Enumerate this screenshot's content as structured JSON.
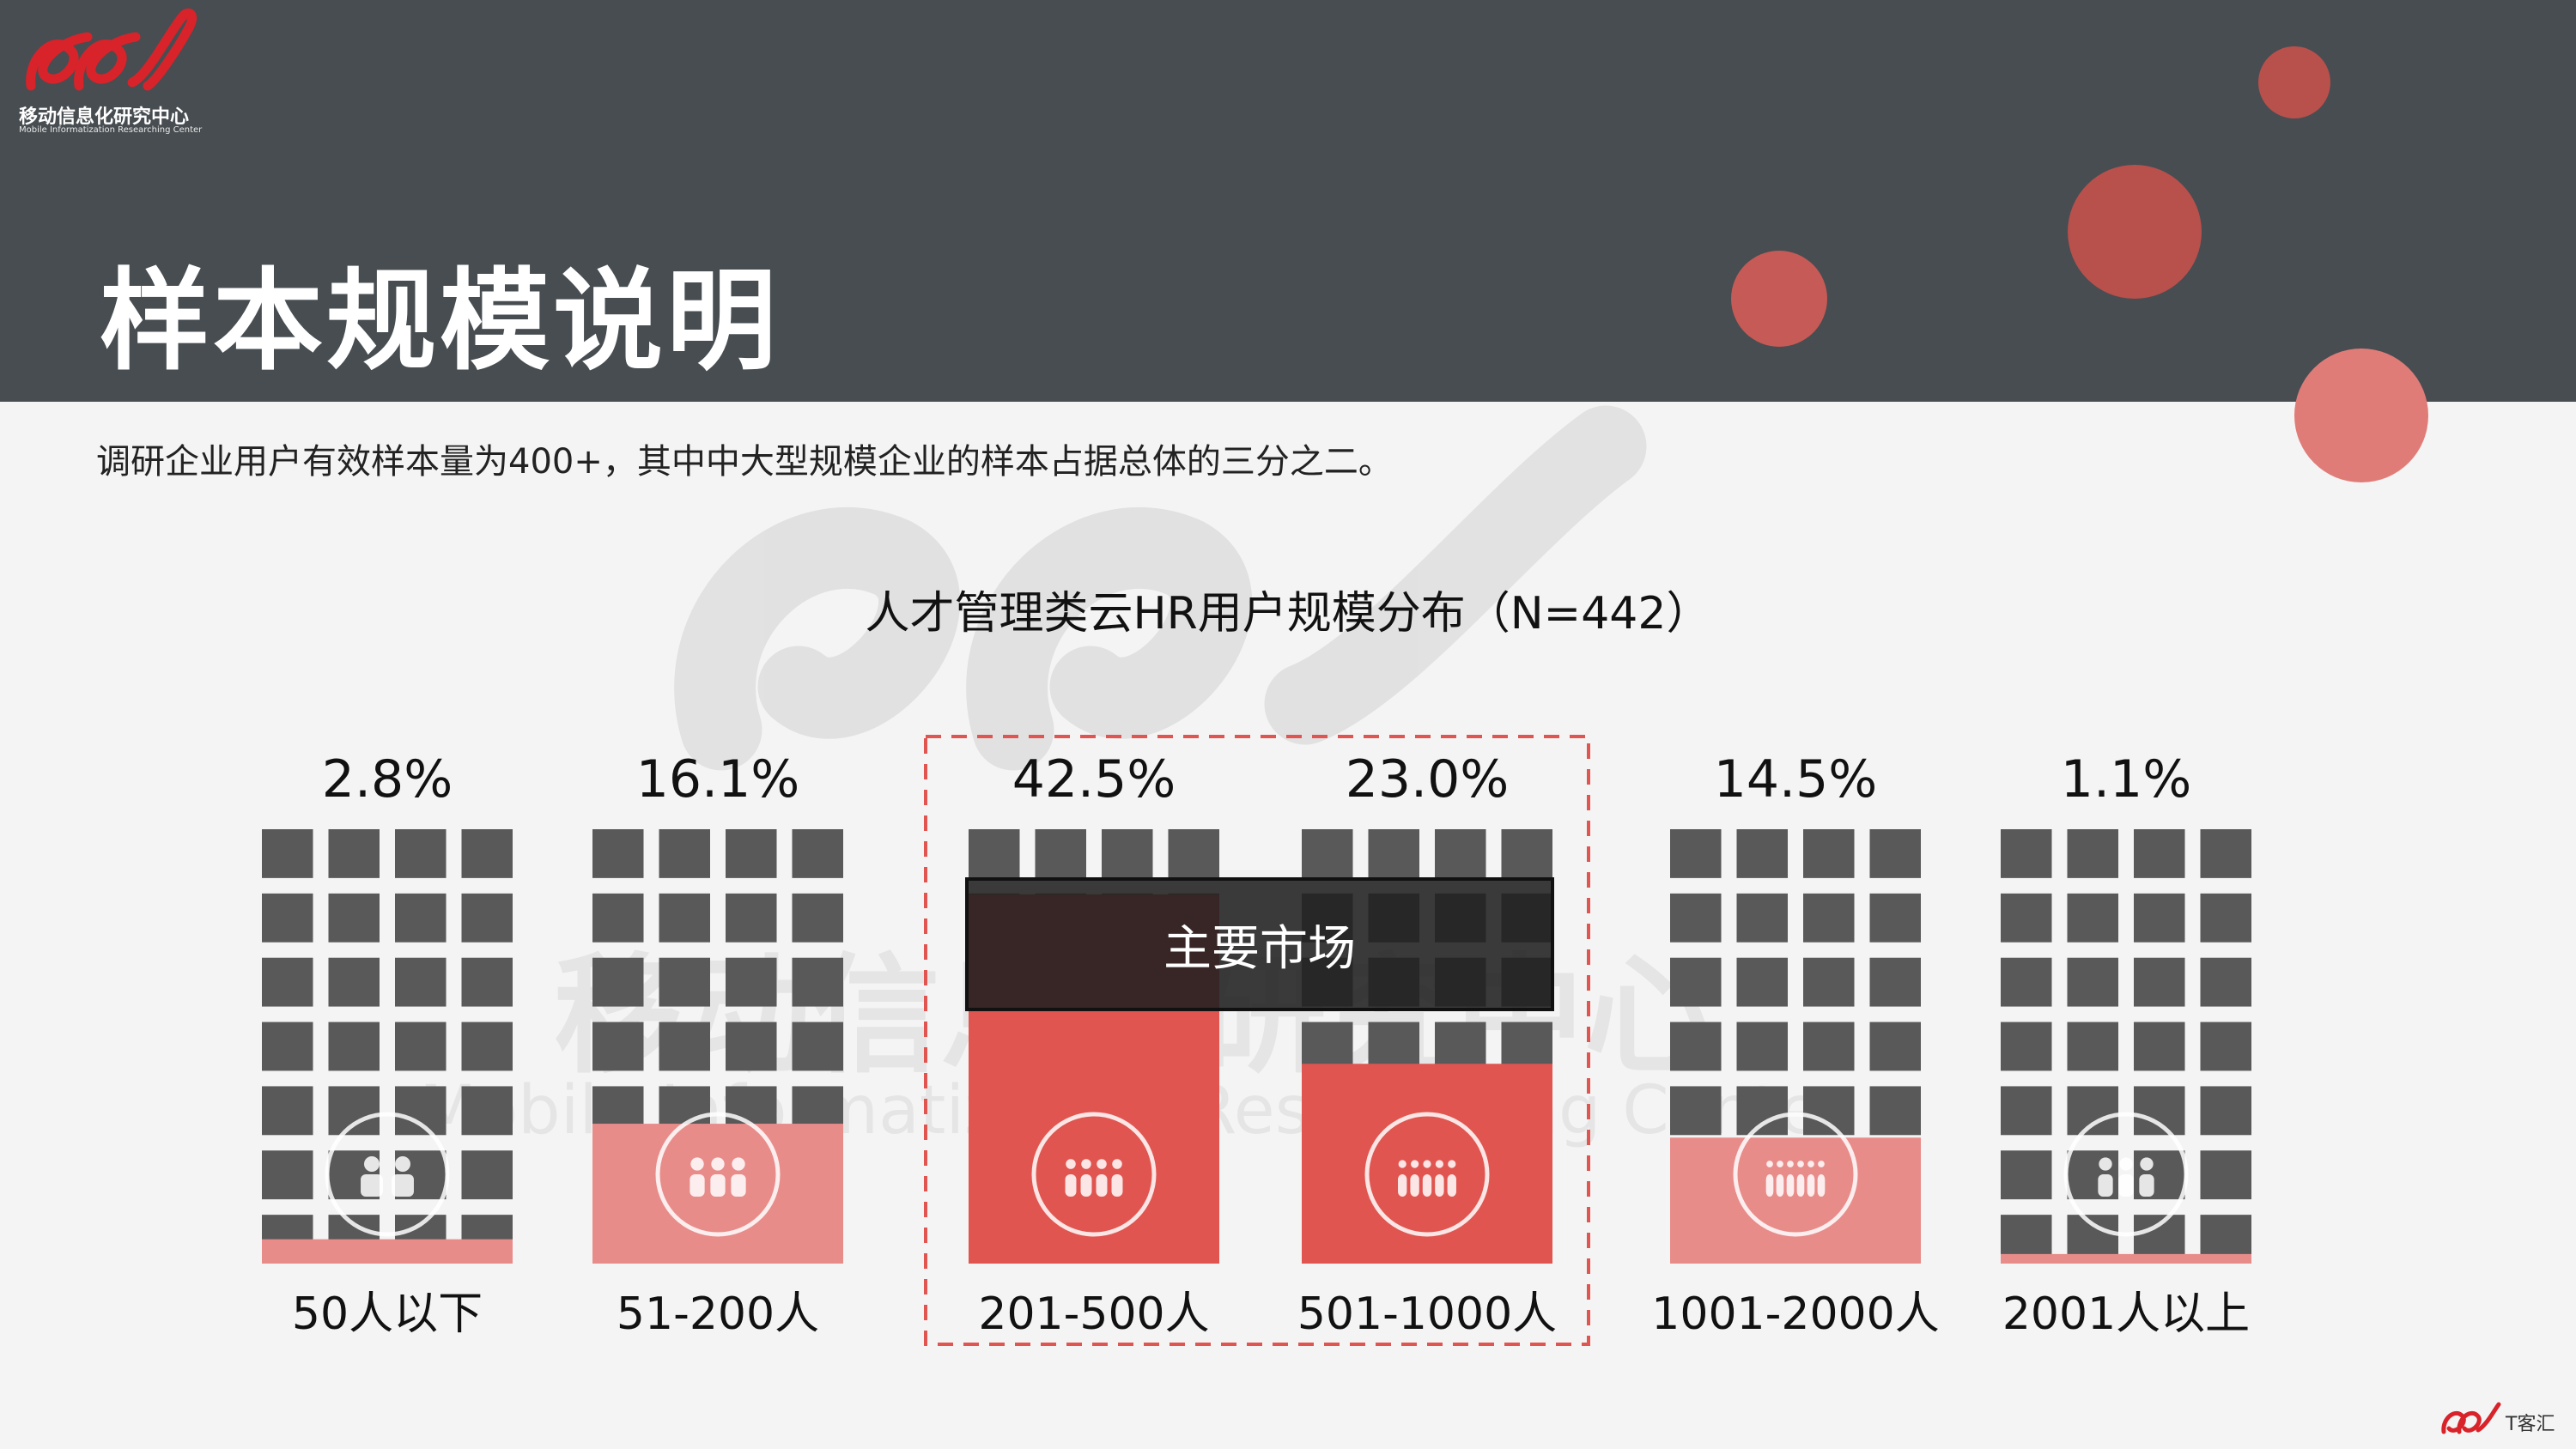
{
  "header": {
    "logo_text": "移动信息化研究中心",
    "logo_subtext": "Mobile Informatization Researching Center",
    "title": "样本规模说明"
  },
  "subtitle": "调研企业用户有效样本量为400+，其中中大型规模企业的样本占据总体的三分之二。",
  "watermark": {
    "cn": "移动信息化研究中心",
    "en": "Mobile Informatization Researching Center"
  },
  "highlight_label": "主要市场",
  "footer_brand": "T客汇",
  "colors": {
    "header_bg": "#474d51",
    "grid_gray": "#595959",
    "fill_main": "#e05550",
    "fill_light": "#e88c8a",
    "dashed_border": "#e05550",
    "circle_dark": "#b8504c",
    "circle_mid": "#c55a56",
    "circle_light": "#e07c78"
  },
  "chart_data": {
    "type": "bar",
    "title": "人才管理类云HR用户规模分布（N=442）",
    "categories": [
      "50人以下",
      "51-200人",
      "201-500人",
      "501-1000人",
      "1001-2000人",
      "2001人以上"
    ],
    "values": [
      2.8,
      16.1,
      42.5,
      23.0,
      14.5,
      1.1
    ],
    "value_labels": [
      "2.8%",
      "16.1%",
      "42.5%",
      "23.0%",
      "14.5%",
      "1.1%"
    ],
    "unit": "%",
    "highlighted_categories": [
      "201-500人",
      "501-1000人"
    ],
    "icons": [
      "businessmen-icon",
      "group-icon",
      "team-leader-icon",
      "conference-table-icon",
      "audience-icon",
      "network-people-icon"
    ]
  }
}
